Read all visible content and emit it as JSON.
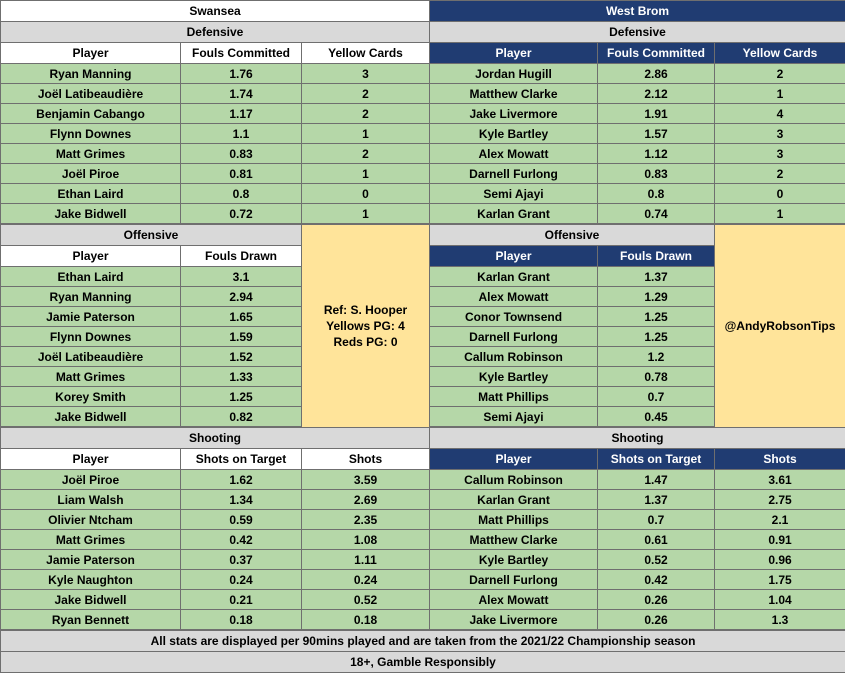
{
  "swansea": {
    "team": "Swansea",
    "defensive": {
      "title": "Defensive",
      "headers": [
        "Player",
        "Fouls Committed",
        "Yellow Cards"
      ],
      "rows": [
        [
          "Ryan Manning",
          "1.76",
          "3"
        ],
        [
          "Joël Latibeaudière",
          "1.74",
          "2"
        ],
        [
          "Benjamin Cabango",
          "1.17",
          "2"
        ],
        [
          "Flynn Downes",
          "1.1",
          "1"
        ],
        [
          "Matt Grimes",
          "0.83",
          "2"
        ],
        [
          "Joël Piroe",
          "0.81",
          "1"
        ],
        [
          "Ethan Laird",
          "0.8",
          "0"
        ],
        [
          "Jake Bidwell",
          "0.72",
          "1"
        ]
      ]
    },
    "offensive": {
      "title": "Offensive",
      "headers": [
        "Player",
        "Fouls Drawn"
      ],
      "rows": [
        [
          "Ethan Laird",
          "3.1"
        ],
        [
          "Ryan Manning",
          "2.94"
        ],
        [
          "Jamie Paterson",
          "1.65"
        ],
        [
          "Flynn Downes",
          "1.59"
        ],
        [
          "Joël Latibeaudière",
          "1.52"
        ],
        [
          "Matt Grimes",
          "1.33"
        ],
        [
          "Korey Smith",
          "1.25"
        ],
        [
          "Jake Bidwell",
          "0.82"
        ]
      ]
    },
    "shooting": {
      "title": "Shooting",
      "headers": [
        "Player",
        "Shots on Target",
        "Shots"
      ],
      "rows": [
        [
          "Joël Piroe",
          "1.62",
          "3.59"
        ],
        [
          "Liam Walsh",
          "1.34",
          "2.69"
        ],
        [
          "Olivier Ntcham",
          "0.59",
          "2.35"
        ],
        [
          "Matt Grimes",
          "0.42",
          "1.08"
        ],
        [
          "Jamie Paterson",
          "0.37",
          "1.11"
        ],
        [
          "Kyle Naughton",
          "0.24",
          "0.24"
        ],
        [
          "Jake Bidwell",
          "0.21",
          "0.52"
        ],
        [
          "Ryan Bennett",
          "0.18",
          "0.18"
        ]
      ]
    }
  },
  "westbrom": {
    "team": "West Brom",
    "defensive": {
      "title": "Defensive",
      "headers": [
        "Player",
        "Fouls Committed",
        "Yellow Cards"
      ],
      "rows": [
        [
          "Jordan Hugill",
          "2.86",
          "2"
        ],
        [
          "Matthew Clarke",
          "2.12",
          "1"
        ],
        [
          "Jake Livermore",
          "1.91",
          "4"
        ],
        [
          "Kyle Bartley",
          "1.57",
          "3"
        ],
        [
          "Alex Mowatt",
          "1.12",
          "3"
        ],
        [
          "Darnell Furlong",
          "0.83",
          "2"
        ],
        [
          "Semi Ajayi",
          "0.8",
          "0"
        ],
        [
          "Karlan Grant",
          "0.74",
          "1"
        ]
      ]
    },
    "offensive": {
      "title": "Offensive",
      "headers": [
        "Player",
        "Fouls Drawn"
      ],
      "rows": [
        [
          "Karlan Grant",
          "1.37"
        ],
        [
          "Alex Mowatt",
          "1.29"
        ],
        [
          "Conor Townsend",
          "1.25"
        ],
        [
          "Darnell Furlong",
          "1.25"
        ],
        [
          "Callum Robinson",
          "1.2"
        ],
        [
          "Kyle Bartley",
          "0.78"
        ],
        [
          "Matt Phillips",
          "0.7"
        ],
        [
          "Semi Ajayi",
          "0.45"
        ]
      ]
    },
    "shooting": {
      "title": "Shooting",
      "headers": [
        "Player",
        "Shots on Target",
        "Shots"
      ],
      "rows": [
        [
          "Callum Robinson",
          "1.47",
          "3.61"
        ],
        [
          "Karlan Grant",
          "1.37",
          "2.75"
        ],
        [
          "Matt Phillips",
          "0.7",
          "2.1"
        ],
        [
          "Matthew Clarke",
          "0.61",
          "0.91"
        ],
        [
          "Kyle Bartley",
          "0.52",
          "0.96"
        ],
        [
          "Darnell Furlong",
          "0.42",
          "1.75"
        ],
        [
          "Alex Mowatt",
          "0.26",
          "1.04"
        ],
        [
          "Jake Livermore",
          "0.26",
          "1.3"
        ]
      ]
    }
  },
  "referee": {
    "name": "Ref: S. Hooper",
    "yellows": "Yellows PG: 4",
    "reds": "Reds PG: 0"
  },
  "handle": "@AndyRobsonTips",
  "footer": {
    "note": "All stats are displayed per 90mins played and are taken from the 2021/22 Championship season",
    "gamble": "18+, Gamble Responsibly"
  },
  "colors": {
    "swansea_header": "#ffffff",
    "westbrom_header": "#203c72",
    "section_title": "#d9d9d9",
    "data_rows": "#b5d7a8",
    "info_box": "#ffe49a"
  }
}
